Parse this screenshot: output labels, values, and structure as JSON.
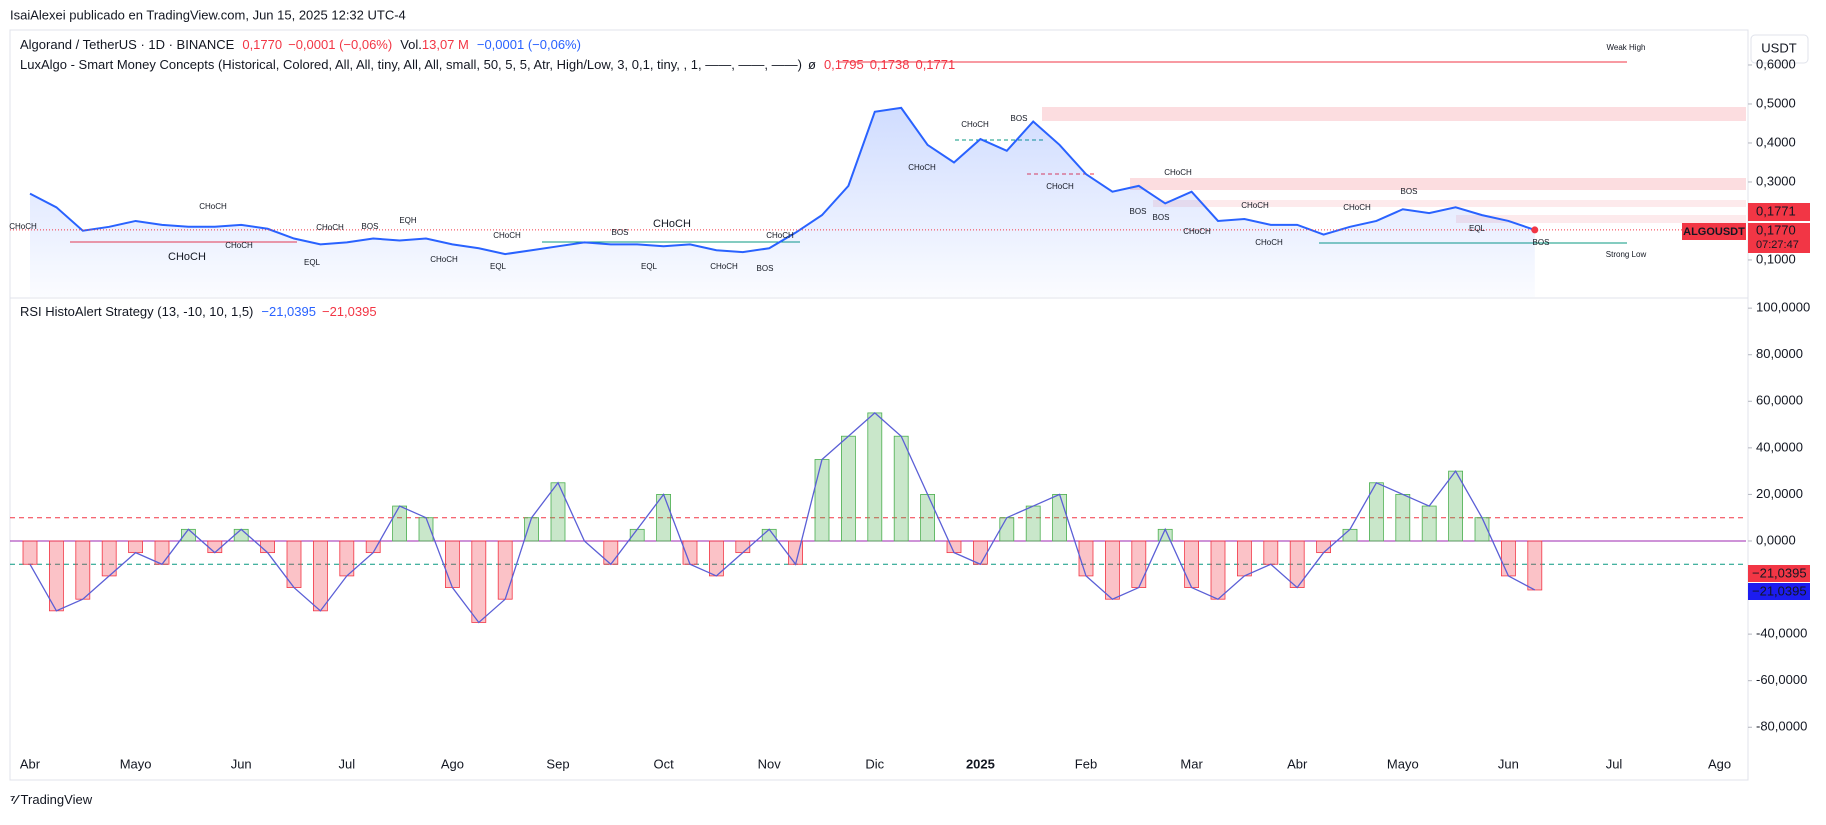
{
  "page": {
    "publisher": "IsaiAlexei publicado en TradingView.com, Jun 15, 2025 12:32 UTC-4",
    "currency_button": "USDT",
    "brand": "TradingView"
  },
  "chart_data": [
    {
      "type": "line",
      "title": "Algorand / TetherUS · 1D · BINANCE",
      "legend": {
        "last": "0,1770",
        "change": "−0,0001 (−0,06%)",
        "vol_label": "Vol.",
        "vol": "13,07 M",
        "vol_change": "−0,0001 (−0,06%)"
      },
      "indicator": {
        "name": "LuxAlgo - Smart Money Concepts (Historical, Colored, All, All, tiny, All, All, small, 50, 5, 5, Atr, High/Low, 3, 0,1, tiny, , 1, ——, ——, ——)",
        "symbol": "ø",
        "values": [
          "0,1795",
          "0,1738",
          "0,1771"
        ]
      },
      "categories": [
        "Abr",
        null,
        null,
        null,
        "Mayo",
        null,
        null,
        null,
        "Jun",
        null,
        null,
        null,
        "Jul",
        null,
        null,
        null,
        "Ago",
        null,
        null,
        null,
        "Sep",
        null,
        null,
        null,
        "Oct",
        null,
        null,
        null,
        "Nov",
        null,
        null,
        null,
        "Dic",
        null,
        null,
        null,
        "2025",
        null,
        null,
        null,
        "Feb",
        null,
        null,
        null,
        "Mar",
        null,
        null,
        null,
        "Abr",
        null,
        null,
        null,
        "Mayo",
        null,
        null,
        null,
        "Jun",
        null,
        null,
        null,
        "Jul",
        null,
        null,
        null,
        "Ago",
        null,
        null,
        null
      ],
      "series": [
        {
          "name": "ALGOUSDT",
          "color": "#2962ff",
          "values": [
            0.27,
            0.235,
            0.175,
            0.185,
            0.2,
            0.19,
            0.185,
            0.185,
            0.19,
            0.18,
            0.155,
            0.14,
            0.145,
            0.155,
            0.15,
            0.155,
            0.14,
            0.13,
            0.115,
            0.125,
            0.135,
            0.145,
            0.14,
            0.14,
            0.135,
            0.14,
            0.125,
            0.12,
            0.13,
            0.17,
            0.215,
            0.29,
            0.48,
            0.49,
            0.395,
            0.35,
            0.41,
            0.38,
            0.455,
            0.395,
            0.32,
            0.275,
            0.29,
            0.245,
            0.275,
            0.2,
            0.205,
            0.19,
            0.19,
            0.165,
            0.185,
            0.2,
            0.23,
            0.22,
            0.235,
            0.215,
            0.2,
            0.177,
            null,
            null,
            null,
            null,
            null,
            null,
            null,
            null,
            null,
            null
          ]
        }
      ],
      "ylim": [
        0.005,
        0.682
      ],
      "yticks": [
        {
          "value": 0.1,
          "label": "0,1000"
        },
        {
          "value": 0.3,
          "label": "0,3000"
        },
        {
          "value": 0.4,
          "label": "0,4000"
        },
        {
          "value": 0.5,
          "label": "0,5000"
        },
        {
          "value": 0.6,
          "label": "0,6000"
        }
      ],
      "last_value": {
        "value": 0.177,
        "label": "0,1770"
      },
      "countdown": "07:27:47",
      "marker_label": "0,1771",
      "annotations": [
        "CHoCH",
        "CHoCH",
        "CHoCH",
        "CHoCH",
        "CHoCH",
        "BOS",
        "EQH",
        "EQL",
        "CHoCH",
        "CHoCH",
        "EQL",
        "BOS",
        "CHoCH",
        "EQL",
        "CHoCH",
        "BOS",
        "CHoCH",
        "CHoCH",
        "CHoCH",
        "BOS",
        "CHoCH",
        "CHoCH",
        "BOS",
        "BOS",
        "CHoCH",
        "CHoCH",
        "CHoCH",
        "CHoCH",
        "BOS",
        "EQL",
        "BOS",
        "Weak High",
        "Strong Low"
      ]
    },
    {
      "type": "bar",
      "title": "RSI HistoAlert Strategy (13, -10, 10, 1,5)",
      "legend_values": [
        "−21,0395",
        "−21,0395"
      ],
      "series": [
        {
          "name": "RSI",
          "color_positive": "#4caf50",
          "color_negative": "#f23645",
          "line_color": "#5b5fd6",
          "values": [
            -10,
            -30,
            -25,
            -15,
            -5,
            -10,
            5,
            -5,
            5,
            -5,
            -20,
            -30,
            -15,
            -5,
            15,
            10,
            -20,
            -35,
            -25,
            10,
            25,
            0,
            -10,
            5,
            20,
            -10,
            -15,
            -5,
            5,
            -10,
            35,
            45,
            55,
            45,
            20,
            -5,
            -10,
            10,
            15,
            20,
            -15,
            -25,
            -20,
            5,
            -20,
            -25,
            -15,
            -10,
            -20,
            -5,
            5,
            25,
            20,
            15,
            30,
            10,
            -15,
            -21.0395,
            null,
            null,
            null,
            null,
            null,
            null,
            null,
            null,
            null,
            null
          ]
        }
      ],
      "levels": [
        {
          "value": 10,
          "color": "#f23645",
          "dashed": true
        },
        {
          "value": 0,
          "color": "#9c27b0",
          "dashed": false
        },
        {
          "value": -10,
          "color": "#089981",
          "dashed": true
        }
      ],
      "ylim": [
        -90.2,
        103.5
      ],
      "yticks": [
        {
          "value": -80,
          "label": "-80,0000"
        },
        {
          "value": -60,
          "label": "-60,0000"
        },
        {
          "value": -40,
          "label": "-40,0000"
        },
        {
          "value": 0,
          "label": "0,0000"
        },
        {
          "value": 20,
          "label": "20,0000"
        },
        {
          "value": 40,
          "label": "40,0000"
        },
        {
          "value": 60,
          "label": "60,0000"
        },
        {
          "value": 80,
          "label": "80,0000"
        },
        {
          "value": 100,
          "label": "100,0000"
        }
      ]
    }
  ]
}
